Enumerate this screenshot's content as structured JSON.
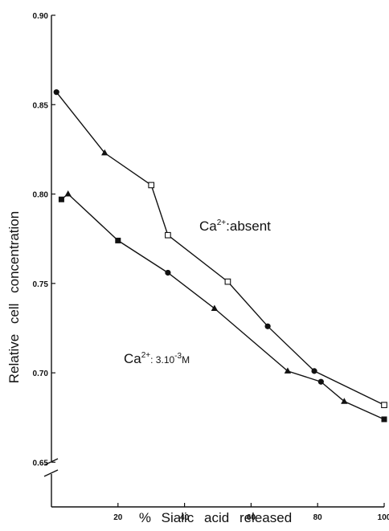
{
  "chart_data": {
    "type": "line",
    "xlabel": "% Sialic acid released",
    "ylabel": "Relative cell concentration",
    "xlim": [
      0,
      100
    ],
    "ylim": [
      0.625,
      0.9
    ],
    "axis_break": true,
    "grid": false,
    "xticks": [
      20,
      40,
      60,
      80,
      100
    ],
    "xtick_labels": [
      "20",
      "40",
      "60",
      "80",
      "100"
    ],
    "yticks": [
      0.65,
      0.7,
      0.75,
      0.8,
      0.85,
      0.9
    ],
    "ytick_labels": [
      "0.65",
      "0.70",
      "0.75",
      "0.80",
      "0.85",
      "0.90"
    ],
    "series": [
      {
        "label_base": "Ca",
        "label_sup": "2+",
        "label_rest": ":absent",
        "color": "#111111",
        "points": [
          {
            "x": 1.5,
            "y": 0.857,
            "marker": "circle"
          },
          {
            "x": 16,
            "y": 0.823,
            "marker": "triangle"
          },
          {
            "x": 30,
            "y": 0.805,
            "marker": "square-open"
          },
          {
            "x": 35,
            "y": 0.777,
            "marker": "square-open"
          },
          {
            "x": 53,
            "y": 0.751,
            "marker": "square-open"
          },
          {
            "x": 65,
            "y": 0.726,
            "marker": "circle"
          },
          {
            "x": 79,
            "y": 0.701,
            "marker": "circle"
          },
          {
            "x": 100,
            "y": 0.682,
            "marker": "square-open"
          }
        ]
      },
      {
        "label_base": "Ca",
        "label_sup": "2+",
        "label_rest": ": 3.10",
        "label_exp": "-3",
        "label_unit": "M",
        "color": "#111111",
        "points": [
          {
            "x": 3,
            "y": 0.797,
            "marker": "square"
          },
          {
            "x": 5,
            "y": 0.8,
            "marker": "triangle"
          },
          {
            "x": 20,
            "y": 0.774,
            "marker": "square"
          },
          {
            "x": 35,
            "y": 0.756,
            "marker": "circle"
          },
          {
            "x": 49,
            "y": 0.736,
            "marker": "triangle"
          },
          {
            "x": 71,
            "y": 0.701,
            "marker": "triangle"
          },
          {
            "x": 81,
            "y": 0.695,
            "marker": "circle"
          },
          {
            "x": 88,
            "y": 0.684,
            "marker": "triangle"
          },
          {
            "x": 100,
            "y": 0.674,
            "marker": "square"
          }
        ]
      }
    ]
  }
}
